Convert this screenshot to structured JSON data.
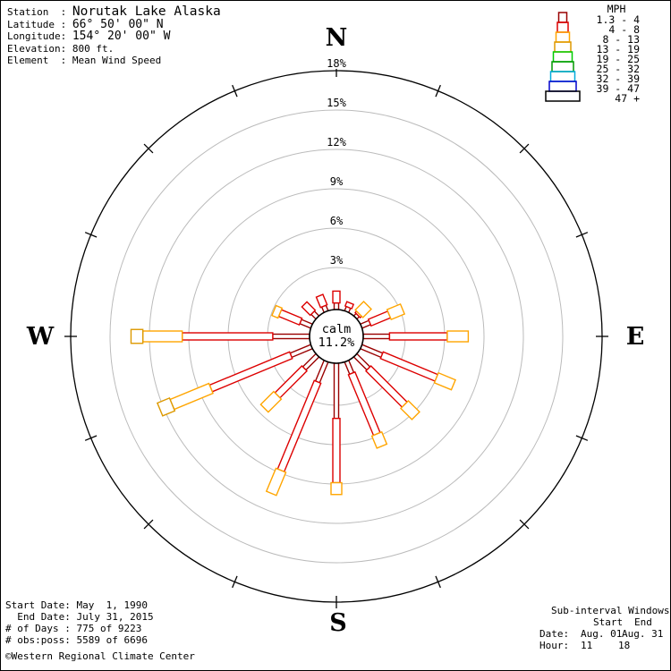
{
  "station": {
    "rows": [
      {
        "label": "Station",
        "value": "Norutak Lake Alaska"
      },
      {
        "label": "Latitude",
        "value": "66° 50' 00\" N"
      },
      {
        "label": "Longitude",
        "value": "154° 20' 00\" W"
      },
      {
        "label": "Elevation",
        "value": "800 ft."
      },
      {
        "label": "Element",
        "value": "Mean Wind Speed"
      }
    ]
  },
  "legend": {
    "title": "MPH",
    "bins": [
      {
        "range": "1.3 - 4",
        "color": "#990000"
      },
      {
        "range": "4 - 8",
        "color": "#DD0000"
      },
      {
        "range": "8 - 13",
        "color": "#FFA500"
      },
      {
        "range": "13 - 19",
        "color": "#DD9900"
      },
      {
        "range": "19 - 25",
        "color": "#00CC00"
      },
      {
        "range": "25 - 32",
        "color": "#009900"
      },
      {
        "range": "32 - 39",
        "color": "#00AADD"
      },
      {
        "range": "39 - 47",
        "color": "#0000CC"
      },
      {
        "range": "47 +",
        "color": "#000000"
      }
    ]
  },
  "chart_data": {
    "type": "windrose",
    "element": "Mean Wind Speed",
    "units": "MPH",
    "ring_pcts": [
      3,
      6,
      9,
      12,
      15,
      18
    ],
    "ring_label_suffix": "%",
    "calm_label": "calm",
    "calm_value": "11.2%",
    "calm_pct": 11.2,
    "compass": {
      "n": "N",
      "e": "E",
      "s": "S",
      "w": "W"
    },
    "speed_bin_colors_used": [
      "#990000",
      "#DD0000",
      "#FFA500",
      "#DD9900"
    ],
    "petals": [
      {
        "dir": "N",
        "cum_pct": [
          0.3,
          1.2
        ]
      },
      {
        "dir": "NNE",
        "cum_pct": [
          0.15,
          0.5
        ]
      },
      {
        "dir": "NE",
        "cum_pct": [
          0.05,
          0.2,
          1.1
        ]
      },
      {
        "dir": "ENE",
        "cum_pct": [
          0.5,
          2.1,
          3.2
        ]
      },
      {
        "dir": "E",
        "cum_pct": [
          1.8,
          6.2,
          7.8
        ]
      },
      {
        "dir": "ESE",
        "cum_pct": [
          1.5,
          6.0,
          7.4
        ]
      },
      {
        "dir": "SE",
        "cum_pct": [
          1.2,
          5.1,
          6.3
        ]
      },
      {
        "dir": "SSE",
        "cum_pct": [
          0.8,
          5.8,
          6.8
        ]
      },
      {
        "dir": "S",
        "cum_pct": [
          4.0,
          8.9,
          9.8
        ]
      },
      {
        "dir": "SSW",
        "cum_pct": [
          1.5,
          8.8,
          10.7
        ]
      },
      {
        "dir": "SW",
        "cum_pct": [
          1.2,
          4.1,
          5.5
        ]
      },
      {
        "dir": "WSW",
        "cum_pct": [
          1.5,
          8.1,
          11.3,
          12.3
        ]
      },
      {
        "dir": "W",
        "cum_pct": [
          2.6,
          9.5,
          12.5,
          13.4
        ]
      },
      {
        "dir": "WNW",
        "cum_pct": [
          0.7,
          2.4,
          2.9
        ]
      },
      {
        "dir": "NW",
        "cum_pct": [
          0.3,
          1.2
        ]
      },
      {
        "dir": "NNW",
        "cum_pct": [
          0.25,
          1.1
        ]
      }
    ]
  },
  "footer_left": {
    "lines": [
      "Start Date: May  1, 1990",
      "  End Date: July 31, 2015",
      "# of Days : 775 of 9223",
      "# obs:poss: 5589 of 6696"
    ],
    "copyright": "©Western Regional Climate Center"
  },
  "footer_right": {
    "title": "Sub-interval Windows",
    "col_start": "Start",
    "col_end": "End",
    "date_label": "Date:",
    "date_start": "Aug. 01",
    "date_end": "Aug. 31",
    "hour_label": "Hour:",
    "hour_start": "11",
    "hour_end": "18"
  }
}
